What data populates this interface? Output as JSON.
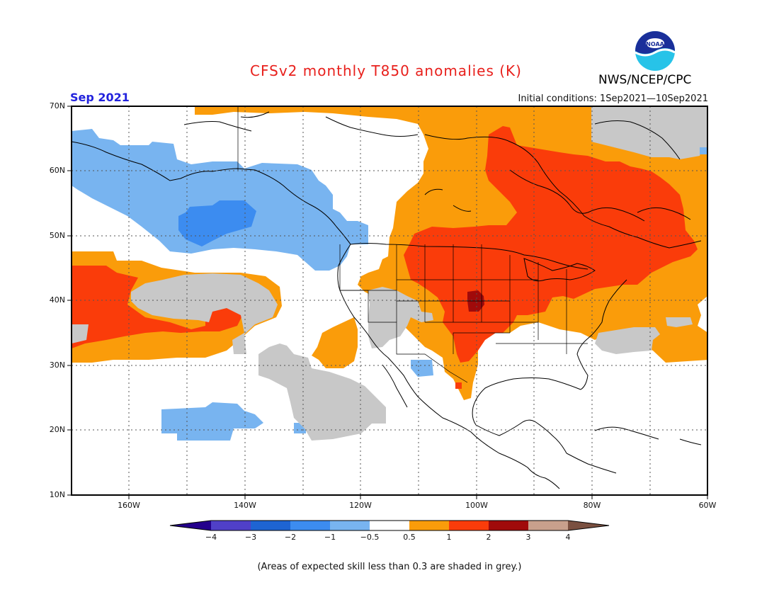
{
  "header": {
    "title": "CFSv2 monthly T850 anomalies (K)",
    "month": "Sep 2021",
    "initial_conditions": "Initial conditions: 1Sep2021—10Sep2021",
    "organization": "NWS/NCEP/CPC",
    "logo_text": "NOAA"
  },
  "map": {
    "lat_labels": [
      "70N",
      "60N",
      "50N",
      "40N",
      "30N",
      "20N",
      "10N"
    ],
    "lon_labels": [
      "160W",
      "140W",
      "120W",
      "100W",
      "80W",
      "60W"
    ],
    "colors": {
      "grey_low_skill": "#c8c8c8",
      "lightblue": "#78b4f0",
      "midblue": "#3c8cf0",
      "orange": "#fa9c0a",
      "redorange": "#fa3c0a",
      "darkred": "#a00a0a",
      "coast": "#000000",
      "grid": "#555555"
    }
  },
  "colorbar": {
    "labels": [
      "−4",
      "−3",
      "−2",
      "−1",
      "−0.5",
      "0.5",
      "1",
      "2",
      "3",
      "4"
    ],
    "colors": [
      "#24008c",
      "#5040c8",
      "#1e64d2",
      "#3c8cf0",
      "#78b4f0",
      "#ffffff",
      "#fa9c0a",
      "#fa3c0a",
      "#a00a0a",
      "#c8a08c",
      "#7a5040"
    ]
  },
  "footer": {
    "note": "(Areas of expected skill less than 0.3 are shaded in grey.)"
  }
}
